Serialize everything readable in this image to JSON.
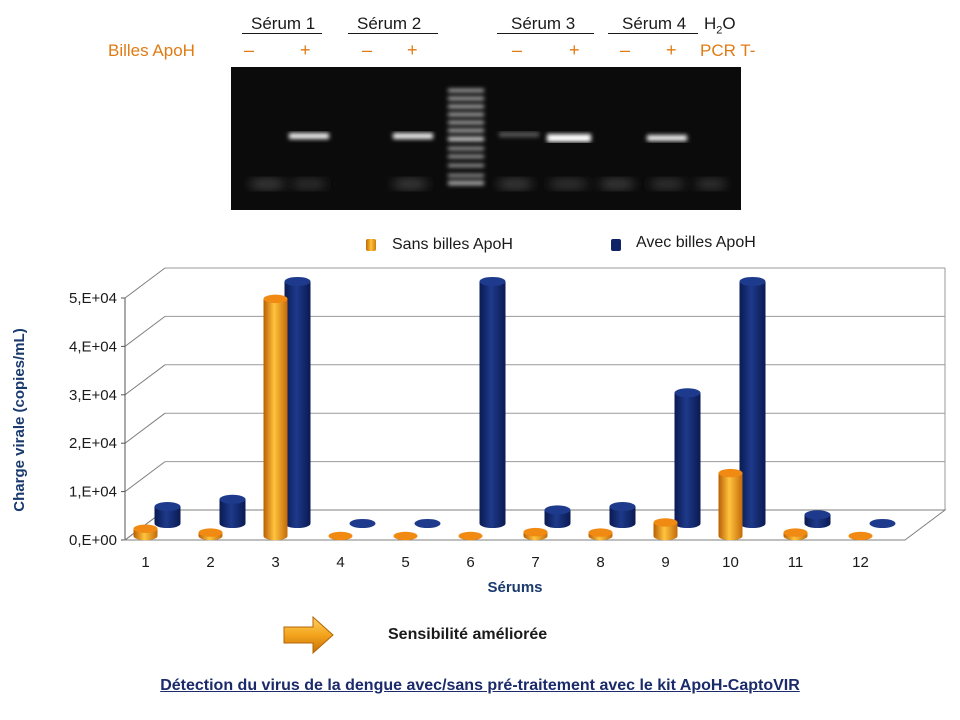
{
  "gel": {
    "lanes": [
      "Sérum 1",
      "Sérum 2",
      "Sérum 3",
      "Sérum 4"
    ],
    "h2o_label": "H",
    "h2o_sub": "2",
    "h2o_tail": "O",
    "billes_label": "Billes ApoH",
    "signs": [
      "–",
      "+",
      "–",
      "+",
      "–",
      "+",
      "–",
      "+"
    ],
    "pcr_label": "PCR T-"
  },
  "legend": {
    "sans": "Sans billes ApoH",
    "avec": "Avec billes ApoH"
  },
  "chart_data": {
    "type": "bar",
    "categories": [
      "1",
      "2",
      "3",
      "4",
      "5",
      "6",
      "7",
      "8",
      "9",
      "10",
      "11",
      "12"
    ],
    "series": [
      {
        "name": "Sans billes ApoH",
        "values": [
          1500,
          700,
          49000,
          0,
          0,
          0,
          800,
          700,
          2800,
          13000,
          700,
          0
        ],
        "color": "#f5a020"
      },
      {
        "name": "Avec billes ApoH",
        "values": [
          3500,
          5000,
          50000,
          0,
          0,
          50000,
          2800,
          3500,
          27000,
          50000,
          1800,
          0
        ],
        "color": "#0f2266"
      }
    ],
    "ytick_labels": [
      "0,E+00",
      "1,E+04",
      "2,E+04",
      "3,E+04",
      "4,E+04",
      "5,E+04"
    ],
    "ylim": [
      0,
      50000
    ],
    "xlabel": "Sérums",
    "ylabel": "Charge virale (copies/mL)",
    "grid": true,
    "legend_position": "top"
  },
  "annotation": {
    "arrow_icon": "right-arrow-icon",
    "sensibilite": "Sensibilité améliorée"
  },
  "footer": "Détection du virus de la dengue avec/sans pré-traitement avec le kit ApoH-CaptoVIR"
}
